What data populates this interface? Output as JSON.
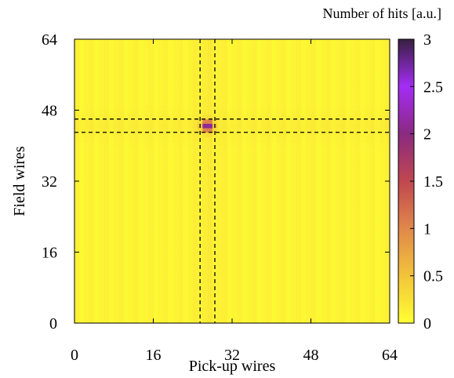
{
  "chart_data": {
    "type": "heatmap",
    "title": "",
    "xlabel": "Pick-up wires",
    "ylabel": "Field wires",
    "xlim": [
      0,
      64
    ],
    "ylim": [
      0,
      64
    ],
    "xticks": [
      "0",
      "16",
      "32",
      "48",
      "64"
    ],
    "yticks": [
      "0",
      "16",
      "32",
      "48",
      "64"
    ],
    "grid": false,
    "colorbar": {
      "label": "Number of hits [a.u.]",
      "range": [
        0,
        3
      ],
      "ticks": [
        "0",
        "0.5",
        "1",
        "1.5",
        "2",
        "2.5",
        "3"
      ],
      "palette": [
        "#ffff33",
        "#f2c43a",
        "#e0884b",
        "#c0474f",
        "#8a2a80",
        "#a42cf5",
        "#372040"
      ]
    },
    "hotspot": {
      "x": 27,
      "y": 44.5,
      "peak_value": 2.3
    },
    "dashed_lines": {
      "vertical_x": [
        25.5,
        28.5
      ],
      "horizontal_y": [
        43,
        46
      ]
    },
    "background_level": 0.15
  }
}
